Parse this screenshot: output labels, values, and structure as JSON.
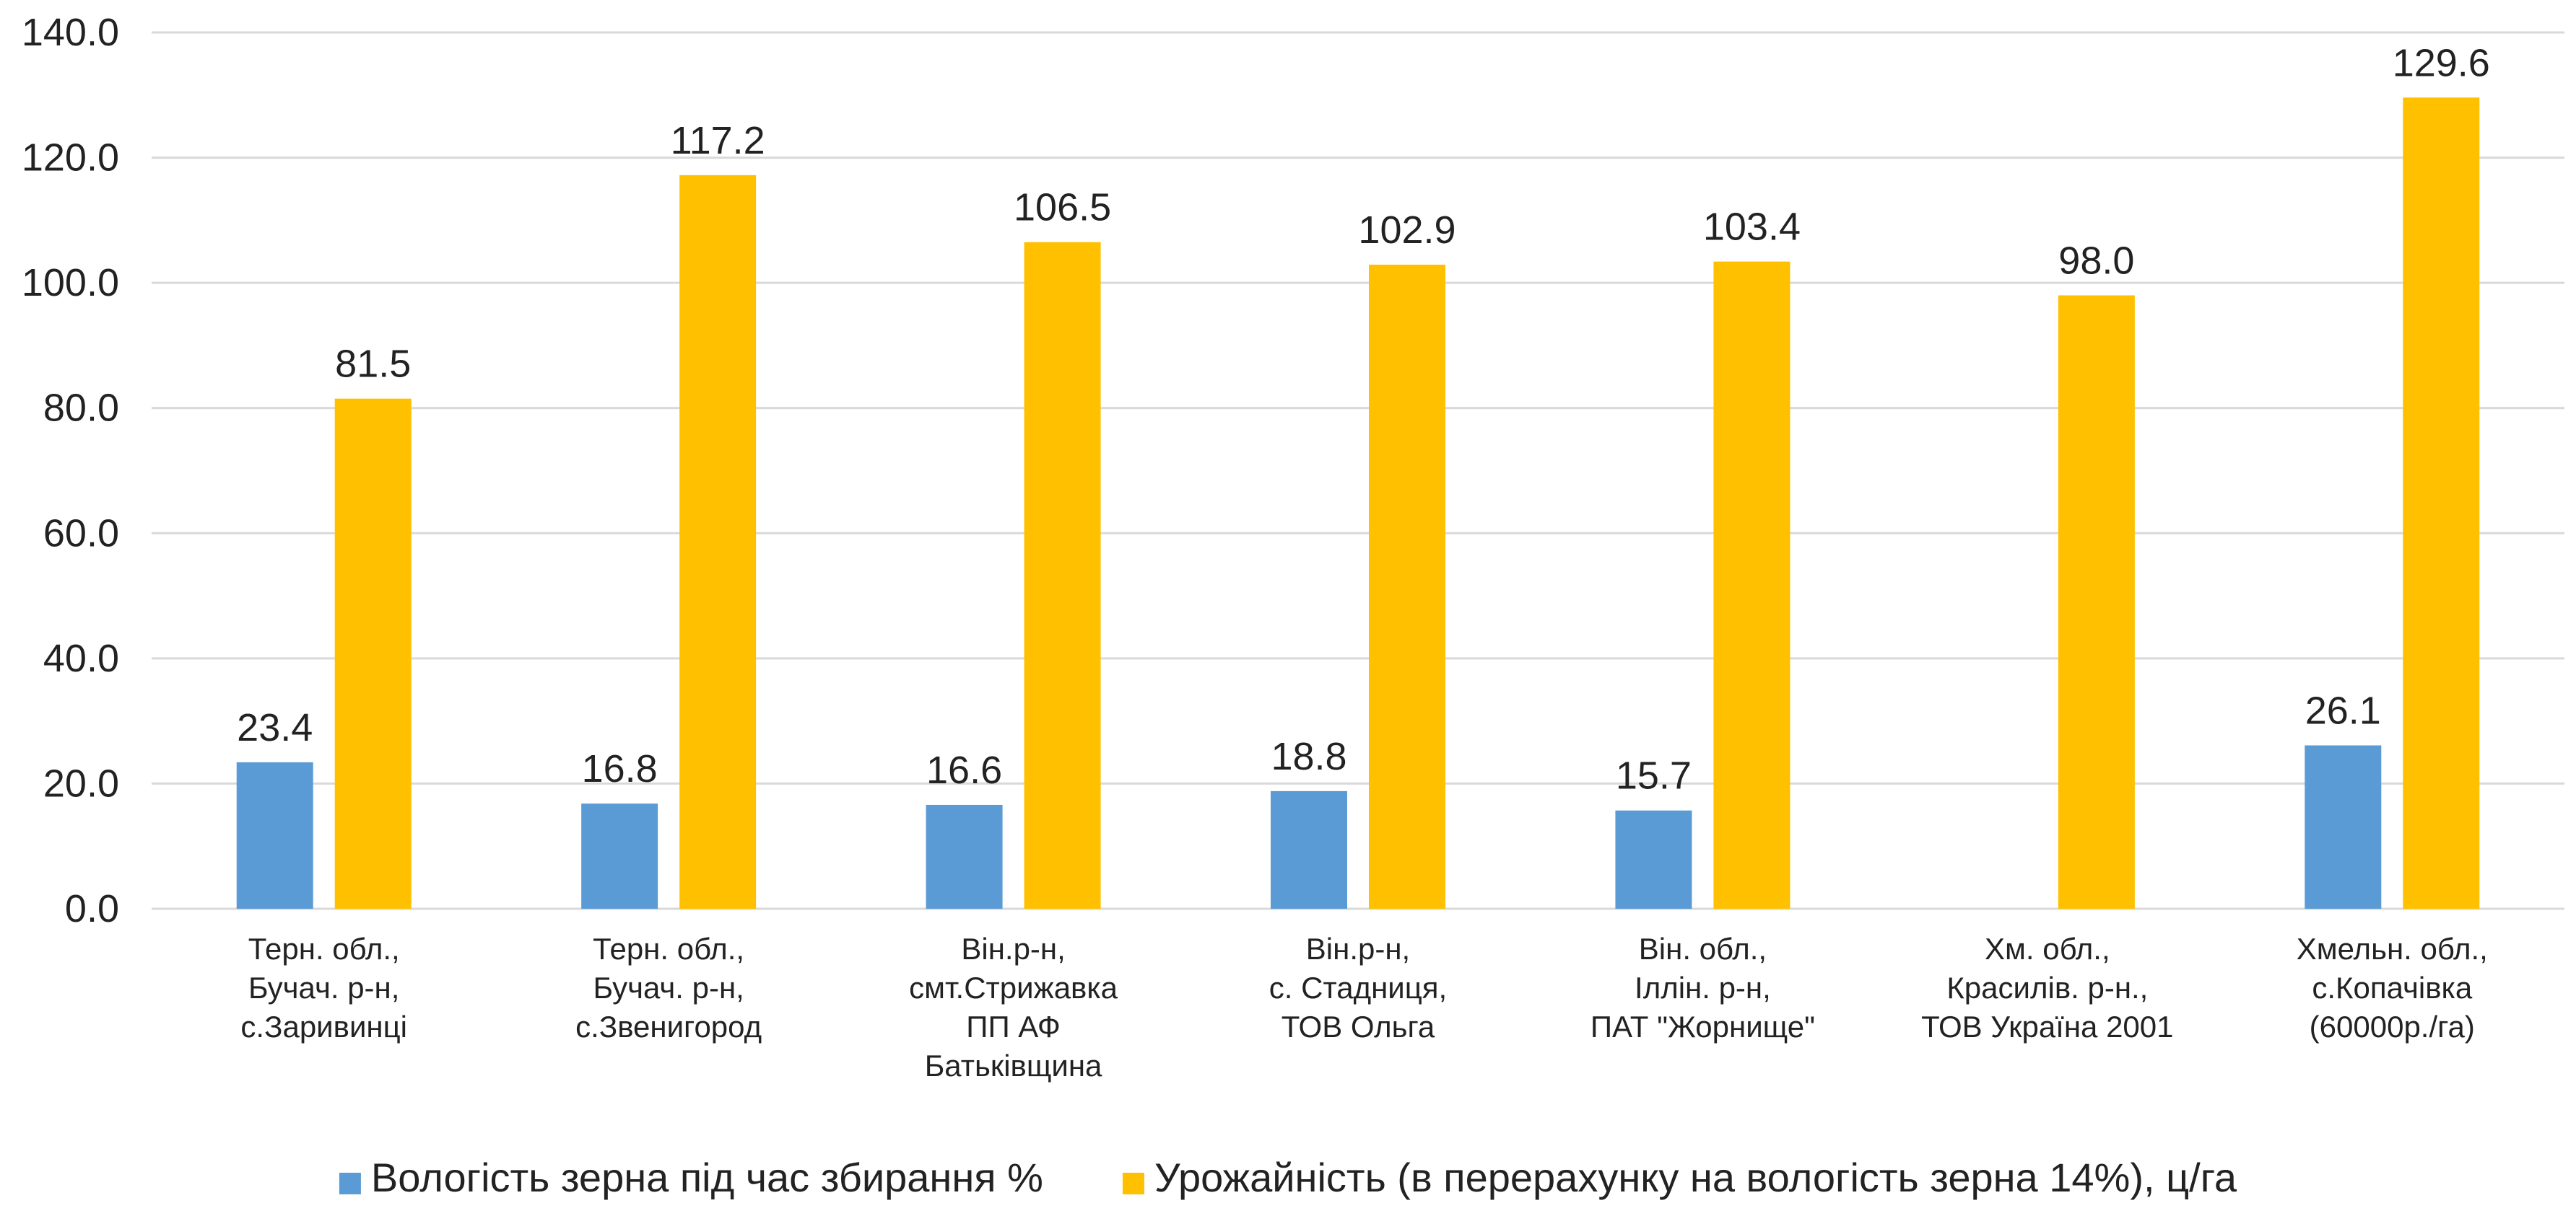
{
  "chart_data": {
    "type": "bar",
    "categories": [
      [
        "Терн. обл.,",
        "Бучач. р-н,",
        "с.Заривинці"
      ],
      [
        "Терн. обл.,",
        "Бучач. р-н,",
        "с.Звенигород"
      ],
      [
        "Він.р-н,",
        "смт.Стрижавка",
        "ПП АФ",
        "Батьківщина"
      ],
      [
        "Він.р-н,",
        "с. Стадниця,",
        "ТОВ Ольга"
      ],
      [
        "Він. обл.,",
        "Іллін. р-н,",
        "ПАТ \"Жорнище\""
      ],
      [
        "Хм. обл.,",
        "Красилів. р-н.,",
        "ТОВ Україна 2001"
      ],
      [
        "Хмельн. обл.,",
        "с.Копачівка",
        "(60000р./га)"
      ]
    ],
    "series": [
      {
        "name": "Вологість зерна під час збирання %",
        "color": "#5b9bd5",
        "values": [
          23.4,
          16.8,
          16.6,
          18.8,
          15.7,
          null,
          26.1
        ],
        "labels": [
          "23.4",
          "16.8",
          "16.6",
          "18.8",
          "15.7",
          "",
          "26.1"
        ]
      },
      {
        "name": "Урожайність  (в перерахунку на вологість зерна 14%), ц/га",
        "color": "#ffc000",
        "values": [
          81.5,
          117.2,
          106.5,
          102.9,
          103.4,
          98.0,
          129.6
        ],
        "labels": [
          "81.5",
          "117.2",
          "106.5",
          "102.9",
          "103.4",
          "98.0",
          "129.6"
        ]
      }
    ],
    "ylim": [
      0,
      140
    ],
    "yticks": [
      "0.0",
      "20.0",
      "40.0",
      "60.0",
      "80.0",
      "100.0",
      "120.0",
      "140.0"
    ],
    "ytick_values": [
      0,
      20,
      40,
      60,
      80,
      100,
      120,
      140
    ],
    "grid": true,
    "legend": "bottom",
    "title": "",
    "xlabel": "",
    "ylabel": ""
  }
}
